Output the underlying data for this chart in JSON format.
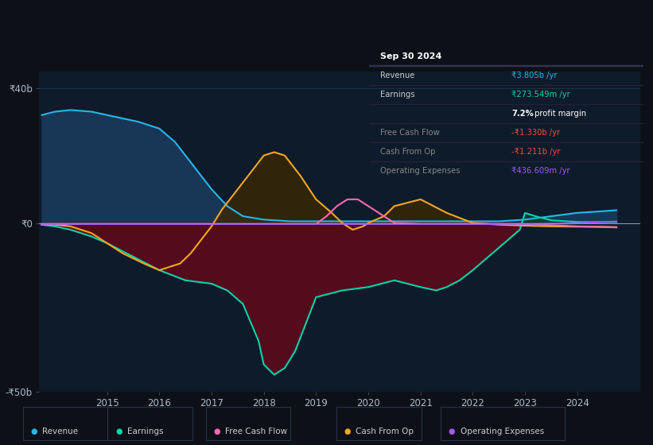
{
  "bg_color": "#0d1117",
  "plot_bg_color": "#0d1b2a",
  "grid_color": "#1e3048",
  "zero_line_color": "#8899aa",
  "ylim": [
    -50,
    45
  ],
  "xlim": [
    2013.7,
    2025.2
  ],
  "yticks_labels": [
    "₹40b",
    "₹0",
    "-₹50b"
  ],
  "yticks_values": [
    40,
    0,
    -50
  ],
  "xticks": [
    2015,
    2016,
    2017,
    2018,
    2019,
    2020,
    2021,
    2022,
    2023,
    2024
  ],
  "revenue": {
    "x": [
      2013.75,
      2014.0,
      2014.3,
      2014.7,
      2015.0,
      2015.3,
      2015.6,
      2016.0,
      2016.3,
      2016.5,
      2016.7,
      2017.0,
      2017.3,
      2017.6,
      2018.0,
      2018.5,
      2019.0,
      2019.5,
      2020.0,
      2020.5,
      2021.0,
      2021.5,
      2022.0,
      2022.5,
      2023.0,
      2023.5,
      2024.0,
      2024.5,
      2024.75
    ],
    "y": [
      32,
      33,
      33.5,
      33,
      32,
      31,
      30,
      28,
      24,
      20,
      16,
      10,
      5,
      2,
      1,
      0.5,
      0.5,
      0.5,
      0.5,
      0.5,
      0.5,
      0.5,
      0.5,
      0.5,
      1,
      2,
      3,
      3.5,
      3.8
    ],
    "color": "#29b5e8",
    "fill_color": "#1a3a5c",
    "fill_alpha": 0.9
  },
  "earnings": {
    "x": [
      2013.75,
      2014.0,
      2014.3,
      2014.7,
      2015.0,
      2015.5,
      2016.0,
      2016.5,
      2017.0,
      2017.3,
      2017.6,
      2017.9,
      2018.0,
      2018.2,
      2018.4,
      2018.6,
      2018.8,
      2019.0,
      2019.5,
      2020.0,
      2020.25,
      2020.5,
      2020.75,
      2021.0,
      2021.3,
      2021.5,
      2021.75,
      2022.0,
      2022.3,
      2022.6,
      2022.9,
      2023.0,
      2023.2,
      2023.5,
      2024.0,
      2024.5,
      2024.75
    ],
    "y": [
      -0.5,
      -1,
      -2,
      -4,
      -6,
      -10,
      -14,
      -17,
      -18,
      -20,
      -24,
      -35,
      -42,
      -45,
      -43,
      -38,
      -30,
      -22,
      -20,
      -19,
      -18,
      -17,
      -18,
      -19,
      -20,
      -19,
      -17,
      -14,
      -10,
      -6,
      -2,
      3,
      2,
      0.8,
      0.3,
      0.27,
      0.27
    ],
    "color": "#00d4aa",
    "fill_color": "#5c0a1a",
    "fill_alpha": 0.9
  },
  "cash_from_op": {
    "x": [
      2013.75,
      2014.0,
      2014.3,
      2014.7,
      2015.0,
      2015.3,
      2015.7,
      2016.0,
      2016.2,
      2016.4,
      2016.6,
      2016.8,
      2017.0,
      2017.2,
      2017.5,
      2017.8,
      2018.0,
      2018.2,
      2018.4,
      2018.5,
      2018.7,
      2019.0,
      2019.3,
      2019.5,
      2019.7,
      2019.9,
      2020.0,
      2020.3,
      2020.5,
      2021.0,
      2021.5,
      2022.0,
      2022.5,
      2023.0,
      2023.5,
      2024.0,
      2024.5,
      2024.75
    ],
    "y": [
      -0.5,
      -0.5,
      -1,
      -3,
      -6,
      -9,
      -12,
      -14,
      -13,
      -12,
      -9,
      -5,
      -1,
      4,
      10,
      16,
      20,
      21,
      20,
      18,
      14,
      7,
      3,
      0,
      -2,
      -1,
      0,
      2,
      5,
      7,
      3,
      0,
      -0.5,
      -0.8,
      -1,
      -1.1,
      -1.15,
      -1.21
    ],
    "color": "#f5a623",
    "fill_color": "#3d2800",
    "fill_alpha": 0.75
  },
  "free_cash_flow": {
    "x": [
      2013.75,
      2014.0,
      2014.5,
      2015.0,
      2016.0,
      2017.0,
      2018.0,
      2018.5,
      2019.0,
      2019.2,
      2019.4,
      2019.6,
      2019.8,
      2020.0,
      2020.3,
      2020.5,
      2021.0,
      2022.0,
      2023.0,
      2024.0,
      2024.5,
      2024.75
    ],
    "y": [
      -0.3,
      -0.3,
      -0.3,
      -0.3,
      -0.3,
      -0.3,
      -0.3,
      -0.3,
      -0.3,
      2,
      5,
      7,
      7,
      5,
      2,
      0,
      -0.3,
      -0.3,
      -0.3,
      -1.0,
      -1.2,
      -1.33
    ],
    "color": "#ff69b4"
  },
  "operating_expenses": {
    "x": [
      2013.75,
      2014.5,
      2015.0,
      2016.0,
      2017.0,
      2018.0,
      2019.0,
      2020.0,
      2021.0,
      2022.0,
      2023.0,
      2023.5,
      2024.0,
      2024.5,
      2024.75
    ],
    "y": [
      -0.3,
      -0.3,
      -0.3,
      -0.3,
      -0.3,
      -0.3,
      -0.3,
      -0.3,
      -0.3,
      -0.3,
      -0.3,
      -0.2,
      -0.1,
      0.3,
      0.44
    ],
    "color": "#a855f7"
  },
  "info_box": {
    "title": "Sep 30 2024",
    "rows": [
      {
        "label": "Revenue",
        "value": "₹3.805b /yr",
        "value_color": "#29b5e8",
        "label_color": "#cccccc"
      },
      {
        "label": "Earnings",
        "value": "₹273.549m /yr",
        "value_color": "#00d4aa",
        "label_color": "#cccccc"
      },
      {
        "label": "",
        "value": "7.2% profit margin",
        "value_color": "#ffffff",
        "label_color": "#cccccc",
        "bold_part": "7.2%"
      },
      {
        "label": "Free Cash Flow",
        "value": "-₹1.330b /yr",
        "value_color": "#ff4444",
        "label_color": "#888888"
      },
      {
        "label": "Cash From Op",
        "value": "-₹1.211b /yr",
        "value_color": "#ff4444",
        "label_color": "#888888"
      },
      {
        "label": "Operating Expenses",
        "value": "₹436.609m /yr",
        "value_color": "#a855f7",
        "label_color": "#888888"
      }
    ]
  },
  "legend": [
    {
      "label": "Revenue",
      "color": "#29b5e8"
    },
    {
      "label": "Earnings",
      "color": "#00d4aa"
    },
    {
      "label": "Free Cash Flow",
      "color": "#ff69b4"
    },
    {
      "label": "Cash From Op",
      "color": "#f5a623"
    },
    {
      "label": "Operating Expenses",
      "color": "#a855f7"
    }
  ]
}
